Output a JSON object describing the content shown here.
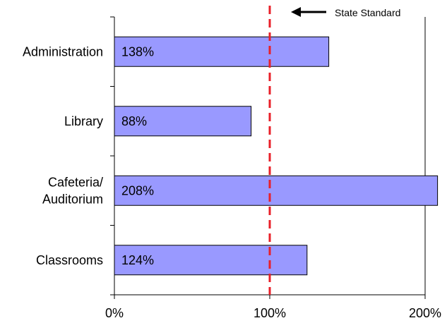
{
  "chart_data": {
    "type": "bar",
    "orientation": "horizontal",
    "categories": [
      "Administration",
      "Library",
      "Cafeteria/ Auditorium",
      "Classrooms"
    ],
    "category_lines": [
      [
        "Administration"
      ],
      [
        "Library"
      ],
      [
        "Cafeteria/",
        "Auditorium"
      ],
      [
        "Classrooms"
      ]
    ],
    "values": [
      138,
      88,
      208,
      124
    ],
    "data_labels": [
      "138%",
      "88%",
      "208%",
      "124%"
    ],
    "x_ticks": [
      0,
      100,
      200
    ],
    "x_tick_labels": [
      "0%",
      "100%",
      "200%"
    ],
    "xlim": [
      0,
      200
    ],
    "reference_line": {
      "value": 100,
      "label": "State Standard",
      "color": "#e8202a"
    },
    "bar_color": "#9999ff",
    "bar_edge": "#000000",
    "grid": false
  }
}
